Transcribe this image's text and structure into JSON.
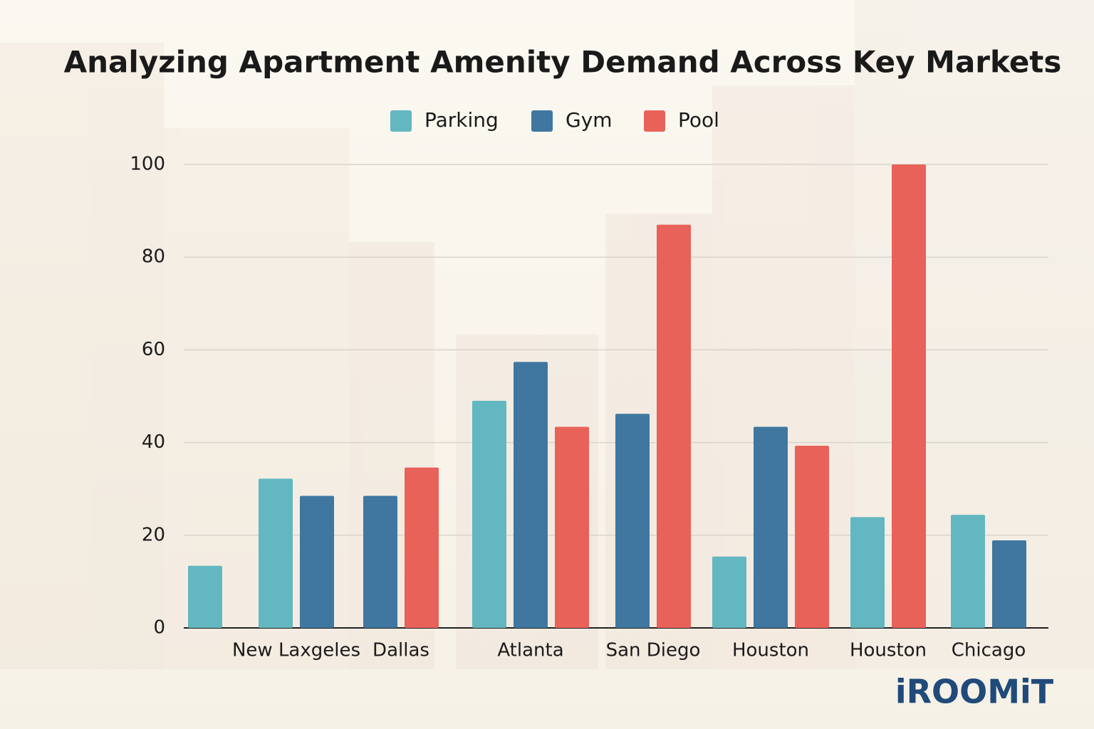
{
  "chart_data": {
    "type": "bar",
    "title": "Analyzing Apartment Amenity Demand Across Key Markets",
    "categories": [
      null,
      "New Laxgeles",
      "Dallas",
      "Atlanta",
      "San Diego",
      "Houston",
      "Houston",
      "Chicago"
    ],
    "series": [
      {
        "name": "Parking",
        "color": "#63b7c0",
        "values": [
          13.4,
          32.2,
          null,
          49,
          null,
          15.4,
          23.9,
          24.4
        ]
      },
      {
        "name": "Gym",
        "color": "#3f77a0",
        "values": [
          null,
          28.5,
          28.5,
          57.4,
          46.2,
          43.4,
          null,
          18.9
        ]
      },
      {
        "name": "Pool",
        "color": "#e8625a",
        "values": [
          null,
          null,
          34.6,
          43.4,
          87,
          39.3,
          100,
          null
        ]
      }
    ],
    "ylim": [
      0,
      100
    ],
    "yticks": [
      0,
      20,
      40,
      60,
      80,
      100
    ],
    "grid": true,
    "legend": "top",
    "brand": "iROOMiT"
  }
}
